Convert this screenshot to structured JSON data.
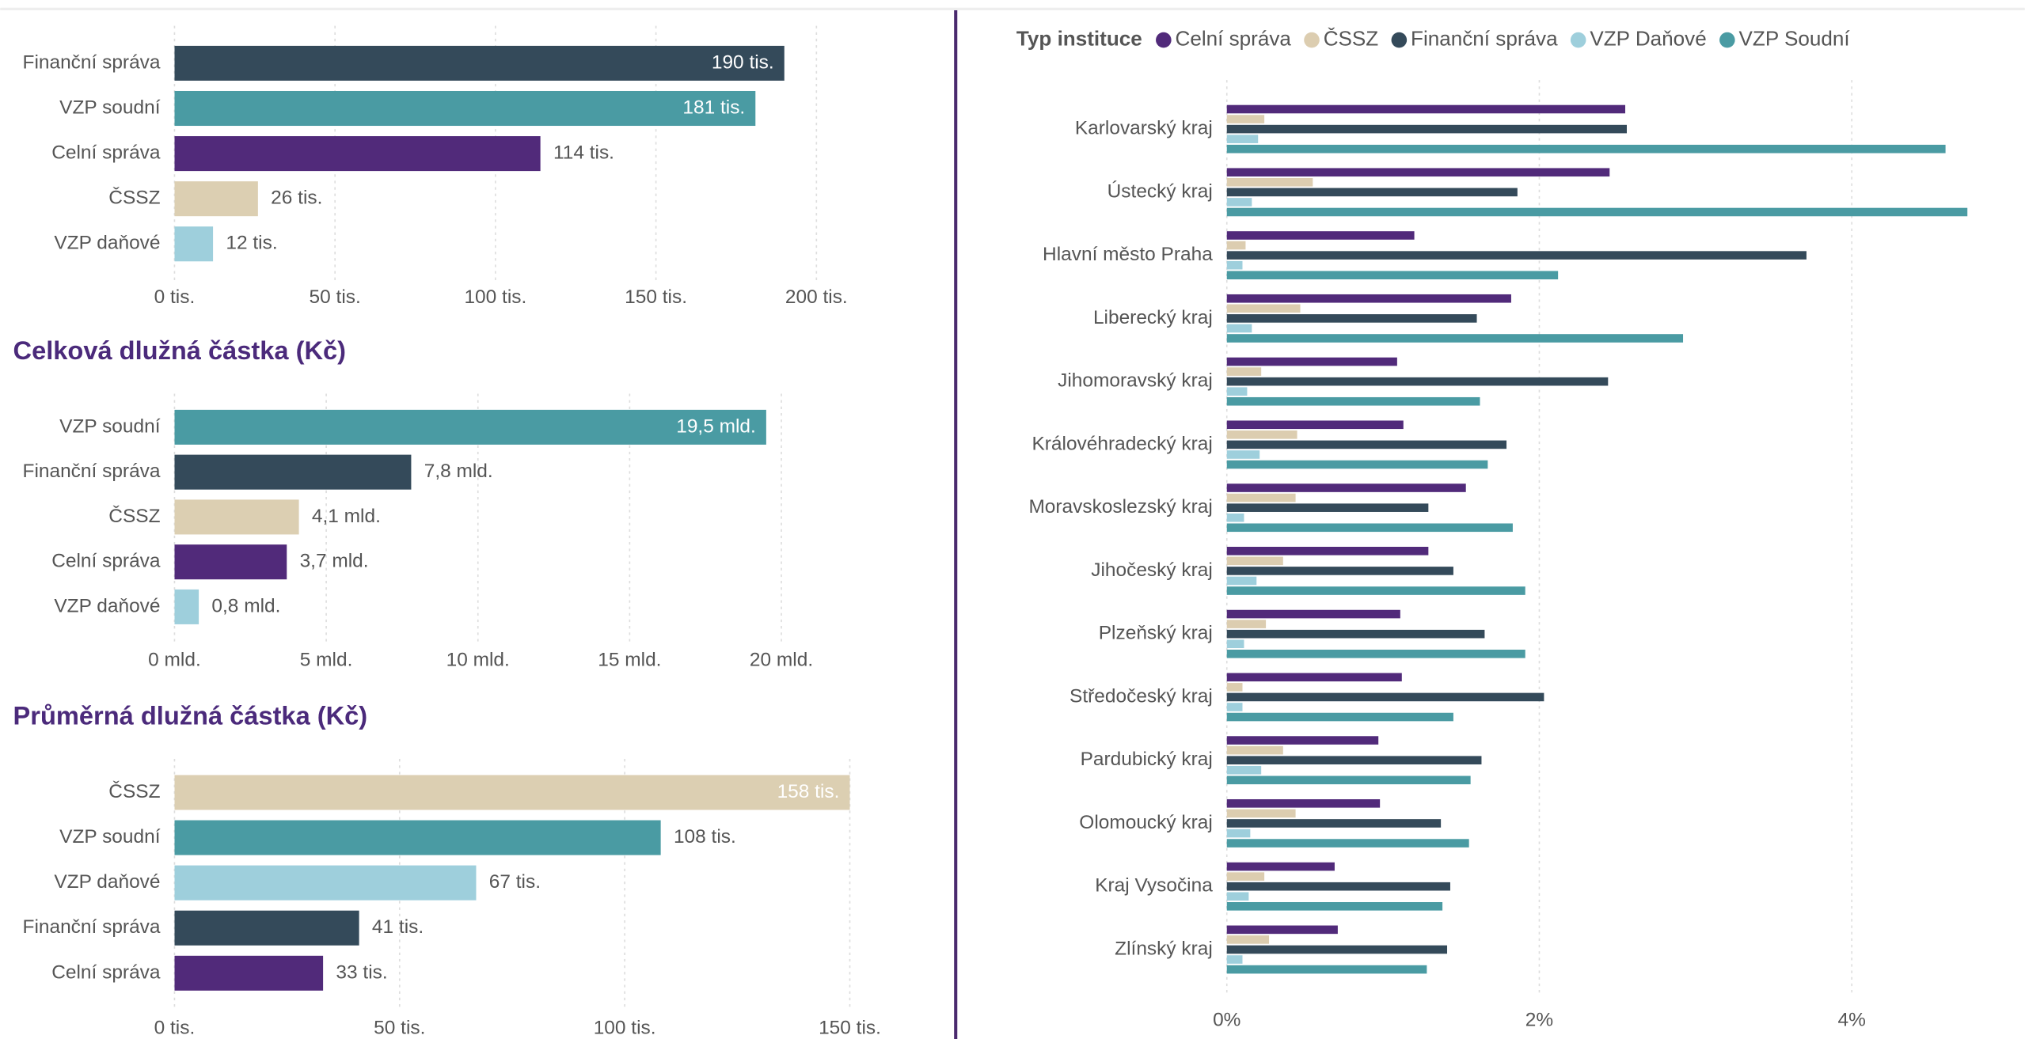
{
  "chart_data": [
    {
      "type": "bar",
      "categories": [
        "Finanční správa",
        "VZP soudní",
        "Celní správa",
        "ČSSZ",
        "VZP daňové"
      ],
      "values": [
        190,
        181,
        114,
        26,
        12
      ],
      "value_labels": [
        "190 tis.",
        "181 tis.",
        "114 tis.",
        "26 tis.",
        "12 tis."
      ],
      "colors": [
        "#344a5a",
        "#4a9ba3",
        "#512a7a",
        "#dccfb2",
        "#9ecfdc"
      ],
      "xlim": [
        0,
        210
      ],
      "xticks": [
        {
          "value": 0,
          "label": "0 tis."
        },
        {
          "value": 50,
          "label": "50 tis."
        },
        {
          "value": 100,
          "label": "100 tis."
        },
        {
          "value": 150,
          "label": "150 tis."
        },
        {
          "value": 200,
          "label": "200 tis."
        }
      ],
      "grid": true
    },
    {
      "type": "bar",
      "title": "Celková dlužná částka (Kč)",
      "categories": [
        "VZP soudní",
        "Finanční správa",
        "ČSSZ",
        "Celní správa",
        "VZP daňové"
      ],
      "values": [
        19.5,
        7.8,
        4.1,
        3.7,
        0.8
      ],
      "value_labels": [
        "19,5 mld.",
        "7,8 mld.",
        "4,1 mld.",
        "3,7 mld.",
        "0,8 mld."
      ],
      "colors": [
        "#4a9ba3",
        "#344a5a",
        "#dccfb2",
        "#512a7a",
        "#9ecfdc"
      ],
      "xlim": [
        0,
        22
      ],
      "xticks": [
        {
          "value": 0,
          "label": "0 mld."
        },
        {
          "value": 5,
          "label": "5 mld."
        },
        {
          "value": 10,
          "label": "10 mld."
        },
        {
          "value": 15,
          "label": "15 mld."
        },
        {
          "value": 20,
          "label": "20 mld."
        }
      ],
      "grid": true
    },
    {
      "type": "bar",
      "title": "Průměrná dlužná částka (Kč)",
      "categories": [
        "ČSSZ",
        "VZP soudní",
        "VZP daňové",
        "Finanční správa",
        "Celní správa"
      ],
      "values": [
        158,
        108,
        67,
        41,
        33
      ],
      "value_labels": [
        "158 tis.",
        "108 tis.",
        "67 tis.",
        "41 tis.",
        "33 tis."
      ],
      "colors": [
        "#dccfb2",
        "#4a9ba3",
        "#9ecfdc",
        "#344a5a",
        "#512a7a"
      ],
      "xlim": [
        0,
        150
      ],
      "xticks": [
        {
          "value": 0,
          "label": "0 tis."
        },
        {
          "value": 50,
          "label": "50 tis."
        },
        {
          "value": 100,
          "label": "100 tis."
        },
        {
          "value": 150,
          "label": "150 tis."
        }
      ],
      "grid": true
    },
    {
      "type": "grouped_bar",
      "legend_title": "Typ instituce",
      "categories": [
        "Karlovarský kraj",
        "Ústecký kraj",
        "Hlavní město Praha",
        "Liberecký kraj",
        "Jihomoravský kraj",
        "Královéhradecký kraj",
        "Moravskoslezský kraj",
        "Jihočeský kraj",
        "Plzeňský kraj",
        "Středočeský kraj",
        "Pardubický kraj",
        "Olomoucký kraj",
        "Kraj Vysočina",
        "Zlínský kraj"
      ],
      "series": [
        {
          "name": "Celní správa",
          "color": "#512a7a",
          "values": [
            2.55,
            2.45,
            1.2,
            1.82,
            1.09,
            1.13,
            1.53,
            1.29,
            1.11,
            1.12,
            0.97,
            0.98,
            0.69,
            0.71
          ]
        },
        {
          "name": "ČSSZ",
          "color": "#dccdb0",
          "values": [
            0.24,
            0.55,
            0.12,
            0.47,
            0.22,
            0.45,
            0.44,
            0.36,
            0.25,
            0.1,
            0.36,
            0.44,
            0.24,
            0.27
          ]
        },
        {
          "name": "Finanční správa",
          "color": "#344a5a",
          "values": [
            2.56,
            1.86,
            3.71,
            1.6,
            2.44,
            1.79,
            1.29,
            1.45,
            1.65,
            2.03,
            1.63,
            1.37,
            1.43,
            1.41
          ]
        },
        {
          "name": "VZP Daňové",
          "color": "#9ecfdc",
          "values": [
            0.2,
            0.16,
            0.1,
            0.16,
            0.13,
            0.21,
            0.11,
            0.19,
            0.11,
            0.1,
            0.22,
            0.15,
            0.14,
            0.1
          ]
        },
        {
          "name": "VZP Soudní",
          "color": "#4a9ba3",
          "values": [
            4.6,
            4.74,
            2.12,
            2.92,
            1.62,
            1.67,
            1.83,
            1.91,
            1.91,
            1.45,
            1.56,
            1.55,
            1.38,
            1.28
          ]
        }
      ],
      "xlim": [
        0,
        5
      ],
      "xticks": [
        {
          "value": 0,
          "label": "0%"
        },
        {
          "value": 2,
          "label": "2%"
        },
        {
          "value": 4,
          "label": "4%"
        }
      ],
      "grid": true
    }
  ]
}
